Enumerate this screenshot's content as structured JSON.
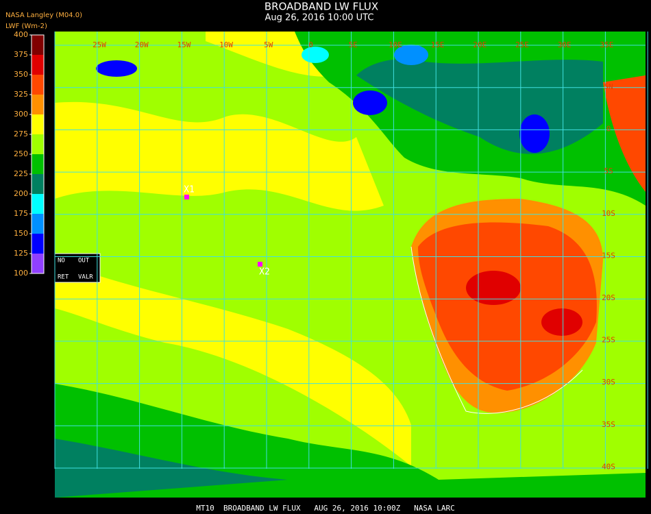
{
  "header": {
    "source": "NASA Langley (M04.0)",
    "units": "LWF (Wm-2)",
    "title": "BROADBAND LW FLUX",
    "subtitle": "Aug 26, 2016 10:00 UTC"
  },
  "colorbar": {
    "ticks": [
      400,
      375,
      350,
      325,
      300,
      275,
      250,
      225,
      200,
      175,
      150,
      125,
      100
    ],
    "colors": [
      "#800000",
      "#e00000",
      "#ff4800",
      "#ff9000",
      "#ffff00",
      "#a0ff00",
      "#00c000",
      "#008060",
      "#00ffff",
      "#0090ff",
      "#0000ff",
      "#9040ff"
    ]
  },
  "map": {
    "lon_labels": [
      "25W",
      "20W",
      "15W",
      "10W",
      "5W",
      "0",
      "5E",
      "10E",
      "15E",
      "20E",
      "25E",
      "30E",
      "35E"
    ],
    "lat_labels": [
      "5N",
      "0",
      "5S",
      "10S",
      "15S",
      "20S",
      "25S",
      "30S",
      "35S",
      "40S"
    ],
    "markers": [
      {
        "label": "X1"
      },
      {
        "label": "X2"
      }
    ],
    "legend_box": {
      "row1": [
        "NO",
        "OUT"
      ],
      "row2": [
        "RET",
        "VALR"
      ]
    }
  },
  "footer": "MT10  BROADBAND LW FLUX   AUG 26, 2016 10:00Z   NASA LARC"
}
